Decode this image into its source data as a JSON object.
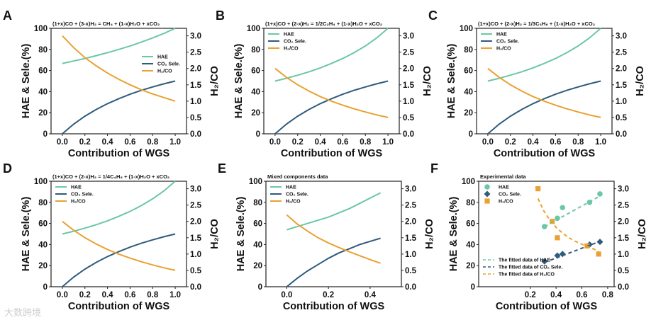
{
  "colors": {
    "hae": "#6cc7a5",
    "co2": "#2f5b7c",
    "h2co": "#e9a132",
    "axis": "#222222"
  },
  "watermark": "大数跨境",
  "chart_data": [
    {
      "panel": "A",
      "type": "line",
      "title": "(1+x)CO + (3-x)H₂ = CH₄ + (1-x)H₂O + xCO₂",
      "xlabel": "Contribution of WGS",
      "ylabel": "HAE & Sele.(%)",
      "y2label": "H₂/CO",
      "xlim": [
        -0.1,
        1.1
      ],
      "ylim": [
        0,
        100
      ],
      "y2lim": [
        0,
        3.23
      ],
      "xticks": [
        "0.0",
        "0.2",
        "0.4",
        "0.6",
        "0.8",
        "1.0"
      ],
      "yticks": [
        "0",
        "20",
        "40",
        "60",
        "80",
        "100"
      ],
      "y2ticks": [
        "0.0",
        "0.5",
        "1.0",
        "1.5",
        "2.0",
        "2.5",
        "3.0"
      ],
      "legend": "center-right",
      "x": [
        0,
        0.1,
        0.2,
        0.3,
        0.4,
        0.5,
        0.6,
        0.7,
        0.8,
        0.9,
        1.0
      ],
      "series": [
        {
          "name": "HAE",
          "axis": "left",
          "color_key": "hae",
          "values": [
            66.7,
            69.0,
            71.4,
            74.1,
            76.9,
            80.0,
            83.3,
            87.0,
            90.9,
            95.2,
            100
          ]
        },
        {
          "name": "CO₂ Sele.",
          "axis": "left",
          "color_key": "co2",
          "values": [
            0,
            9.1,
            16.7,
            23.1,
            28.6,
            33.3,
            37.5,
            41.2,
            44.4,
            47.4,
            50
          ]
        },
        {
          "name": "H₂/CO",
          "axis": "right",
          "color_key": "h2co",
          "values": [
            3.0,
            2.64,
            2.33,
            2.08,
            1.86,
            1.67,
            1.5,
            1.35,
            1.22,
            1.11,
            1.0
          ]
        }
      ]
    },
    {
      "panel": "B",
      "type": "line",
      "title": "(1+x)CO + (2-x)H₂ = 1/2C₂H₄ + (1-x)H₂O + xCO₂",
      "xlabel": "Contribution of WGS",
      "ylabel": "HAE & Sele.(%)",
      "y2label": "H₂/CO",
      "xlim": [
        -0.1,
        1.1
      ],
      "ylim": [
        0,
        100
      ],
      "y2lim": [
        0,
        3.23
      ],
      "xticks": [
        "0.0",
        "0.2",
        "0.4",
        "0.6",
        "0.8",
        "1.0"
      ],
      "yticks": [
        "0",
        "20",
        "40",
        "60",
        "80",
        "100"
      ],
      "y2ticks": [
        "0.0",
        "0.5",
        "1.0",
        "1.5",
        "2.0",
        "2.5",
        "3.0"
      ],
      "legend": "top-left",
      "x": [
        0,
        0.1,
        0.2,
        0.3,
        0.4,
        0.5,
        0.6,
        0.7,
        0.8,
        0.9,
        1.0
      ],
      "series": [
        {
          "name": "HAE",
          "axis": "left",
          "color_key": "hae",
          "values": [
            50,
            52.6,
            55.6,
            58.8,
            62.5,
            66.7,
            71.4,
            76.9,
            83.3,
            90.9,
            100
          ]
        },
        {
          "name": "CO₂ Sele.",
          "axis": "left",
          "color_key": "co2",
          "values": [
            0,
            9.1,
            16.7,
            23.1,
            28.6,
            33.3,
            37.5,
            41.2,
            44.4,
            47.4,
            50
          ]
        },
        {
          "name": "H₂/CO",
          "axis": "right",
          "color_key": "h2co",
          "values": [
            2.0,
            1.73,
            1.5,
            1.31,
            1.14,
            1.0,
            0.875,
            0.765,
            0.667,
            0.579,
            0.5
          ]
        }
      ]
    },
    {
      "panel": "C",
      "type": "line",
      "title": "(1+x)CO + (2-x)H₂ = 1/3C₃H₆ + (1-x)H₂O + xCO₂",
      "xlabel": "Contribution of WGS",
      "ylabel": "HAE & Sele.(%)",
      "y2label": "H₂/CO",
      "xlim": [
        -0.1,
        1.1
      ],
      "ylim": [
        0,
        100
      ],
      "y2lim": [
        0,
        3.23
      ],
      "xticks": [
        "0.0",
        "0.2",
        "0.4",
        "0.6",
        "0.8",
        "1.0"
      ],
      "yticks": [
        "0",
        "20",
        "40",
        "60",
        "80",
        "100"
      ],
      "y2ticks": [
        "0.0",
        "0.5",
        "1.0",
        "1.5",
        "2.0",
        "2.5",
        "3.0"
      ],
      "legend": "top-left",
      "x": [
        0,
        0.1,
        0.2,
        0.3,
        0.4,
        0.5,
        0.6,
        0.7,
        0.8,
        0.9,
        1.0
      ],
      "series": [
        {
          "name": "HAE",
          "axis": "left",
          "color_key": "hae",
          "values": [
            50,
            52.6,
            55.6,
            58.8,
            62.5,
            66.7,
            71.4,
            76.9,
            83.3,
            90.9,
            100
          ]
        },
        {
          "name": "CO₂ Sele.",
          "axis": "left",
          "color_key": "co2",
          "values": [
            0,
            9.1,
            16.7,
            23.1,
            28.6,
            33.3,
            37.5,
            41.2,
            44.4,
            47.4,
            50
          ]
        },
        {
          "name": "H₂/CO",
          "axis": "right",
          "color_key": "h2co",
          "values": [
            2.0,
            1.73,
            1.5,
            1.31,
            1.14,
            1.0,
            0.875,
            0.765,
            0.667,
            0.579,
            0.5
          ]
        }
      ]
    },
    {
      "panel": "D",
      "type": "line",
      "title": "(1+x)CO + (2-x)H₂ = 1/4C₄H₈ + (1-x)H₂O + xCO₂",
      "xlabel": "Contribution of WGS",
      "ylabel": "HAE & Sele.(%)",
      "y2label": "H₂/CO",
      "xlim": [
        -0.1,
        1.1
      ],
      "ylim": [
        0,
        100
      ],
      "y2lim": [
        0,
        3.23
      ],
      "xticks": [
        "0.0",
        "0.2",
        "0.4",
        "0.6",
        "0.8",
        "1.0"
      ],
      "yticks": [
        "0",
        "20",
        "40",
        "60",
        "80",
        "100"
      ],
      "y2ticks": [
        "0.0",
        "0.5",
        "1.0",
        "1.5",
        "2.0",
        "2.5",
        "3.0"
      ],
      "legend": "top-left",
      "x": [
        0,
        0.1,
        0.2,
        0.3,
        0.4,
        0.5,
        0.6,
        0.7,
        0.8,
        0.9,
        1.0
      ],
      "series": [
        {
          "name": "HAE",
          "axis": "left",
          "color_key": "hae",
          "values": [
            50,
            52.6,
            55.6,
            58.8,
            62.5,
            66.7,
            71.4,
            76.9,
            83.3,
            90.9,
            100
          ]
        },
        {
          "name": "CO₂ Sele.",
          "axis": "left",
          "color_key": "co2",
          "values": [
            0,
            9.1,
            16.7,
            23.1,
            28.6,
            33.3,
            37.5,
            41.2,
            44.4,
            47.4,
            50
          ]
        },
        {
          "name": "H₂/CO",
          "axis": "right",
          "color_key": "h2co",
          "values": [
            2.0,
            1.73,
            1.5,
            1.31,
            1.14,
            1.0,
            0.875,
            0.765,
            0.667,
            0.579,
            0.5
          ]
        }
      ]
    },
    {
      "panel": "E",
      "type": "line",
      "title": "Mixed components data",
      "xlabel": "Contribution of WGS",
      "ylabel": "HAE & Sele.(%)",
      "y2label": "H₂/CO",
      "xlim": [
        -0.1,
        0.55
      ],
      "ylim": [
        0,
        100
      ],
      "y2lim": [
        0,
        3.23
      ],
      "xticks": [
        "0.0",
        "0.2",
        "0.4"
      ],
      "yticks": [
        "0",
        "20",
        "40",
        "60",
        "80",
        "100"
      ],
      "y2ticks": [
        "0.0",
        "0.5",
        "1.0",
        "1.5",
        "2.0",
        "2.5",
        "3.0"
      ],
      "legend": "top-left",
      "x": [
        0,
        0.05,
        0.1,
        0.15,
        0.2,
        0.25,
        0.3,
        0.35,
        0.4,
        0.45
      ],
      "series": [
        {
          "name": "HAE",
          "axis": "left",
          "color_key": "hae",
          "values": [
            54,
            57,
            60,
            63,
            66,
            70,
            74,
            79,
            84,
            89
          ]
        },
        {
          "name": "CO₂ Sele.",
          "axis": "left",
          "color_key": "co2",
          "values": [
            0,
            8,
            15,
            21,
            27,
            32,
            36,
            40,
            43,
            46
          ]
        },
        {
          "name": "H₂/CO",
          "axis": "right",
          "color_key": "h2co",
          "values": [
            2.2,
            1.92,
            1.7,
            1.5,
            1.34,
            1.2,
            1.07,
            0.95,
            0.83,
            0.72
          ]
        }
      ]
    },
    {
      "panel": "F",
      "type": "scatter",
      "title": "Experimental data",
      "xlabel": "Contribution of WGS",
      "ylabel": "HAE & Sele.(%)",
      "y2label": "H₂/CO",
      "xlim": [
        -0.2,
        0.85
      ],
      "ylim": [
        0,
        100
      ],
      "y2lim": [
        0,
        3.23
      ],
      "xticks": [
        "0.2",
        "0.4",
        "0.6",
        "0.8"
      ],
      "yticks": [
        "0",
        "20",
        "40",
        "60",
        "80",
        "100"
      ],
      "y2ticks": [
        "0.0",
        "0.5",
        "1.0",
        "1.5",
        "2.0",
        "2.5",
        "3.0"
      ],
      "legend": "top-left",
      "series": [
        {
          "name": "HAE",
          "axis": "left",
          "color_key": "hae",
          "marker": "circle",
          "x": [
            0.31,
            0.41,
            0.45,
            0.66,
            0.74
          ],
          "values": [
            57,
            65,
            75,
            80,
            88
          ]
        },
        {
          "name": "CO₂ Sele.",
          "axis": "left",
          "color_key": "co2",
          "marker": "diamond",
          "x": [
            0.31,
            0.41,
            0.45,
            0.66,
            0.74
          ],
          "values": [
            24,
            29.5,
            31,
            40,
            42.5
          ]
        },
        {
          "name": "H₂/CO",
          "axis": "right",
          "color_key": "h2co",
          "marker": "square",
          "x": [
            0.26,
            0.37,
            0.41,
            0.64,
            0.73
          ],
          "values": [
            3.0,
            2.0,
            1.5,
            1.25,
            1.0
          ]
        }
      ],
      "fits": [
        {
          "name": "The fitted data of HAE",
          "axis": "left",
          "color_key": "hae",
          "x": [
            0.31,
            0.74
          ],
          "values": [
            57,
            86
          ]
        },
        {
          "name": "The fitted data of CO₂ Sele.",
          "axis": "left",
          "color_key": "co2",
          "x": [
            0.31,
            0.74
          ],
          "values": [
            23,
            43
          ]
        },
        {
          "name": "The fitted data of H₂/CO",
          "axis": "right",
          "color_key": "h2co",
          "x": [
            0.26,
            0.3,
            0.35,
            0.4,
            0.45,
            0.5,
            0.55,
            0.6,
            0.65,
            0.7,
            0.73
          ],
          "values": [
            2.7,
            2.35,
            2.05,
            1.82,
            1.64,
            1.5,
            1.39,
            1.3,
            1.22,
            1.14,
            1.08
          ]
        }
      ]
    }
  ]
}
